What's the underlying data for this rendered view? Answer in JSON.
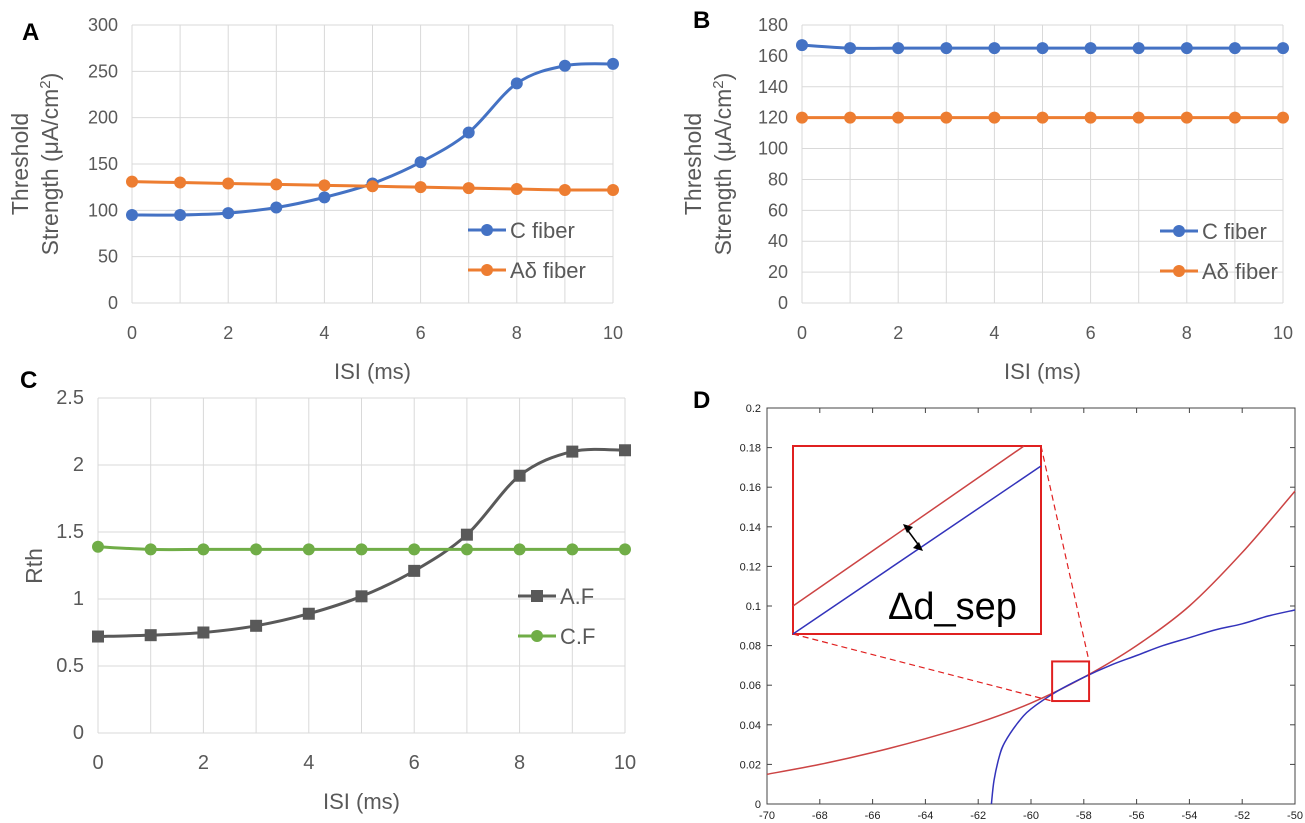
{
  "chart_data": [
    {
      "panel": "A",
      "type": "line",
      "xlabel": "ISI (ms)",
      "ylabel_line1": "Threshold",
      "ylabel_line2": "Strength (μA/cm",
      "ylabel_sup": "2",
      "ylabel_close": ")",
      "xlim": [
        0,
        10
      ],
      "ylim": [
        0,
        300
      ],
      "xticks": [
        0,
        2,
        4,
        6,
        8,
        10
      ],
      "yticks": [
        0,
        50,
        100,
        150,
        200,
        250,
        300
      ],
      "grid": true,
      "legend_position": "right",
      "x": [
        0,
        1,
        2,
        3,
        4,
        5,
        6,
        7,
        8,
        9,
        10
      ],
      "series": [
        {
          "name": "C fiber",
          "color": "#4472C4",
          "marker": "circle",
          "values": [
            95,
            95,
            97,
            103,
            114,
            129,
            152,
            184,
            237,
            256,
            258
          ]
        },
        {
          "name": "Aδ fiber",
          "color": "#ED7D31",
          "marker": "circle",
          "values": [
            131,
            130,
            129,
            128,
            127,
            126,
            125,
            124,
            123,
            122,
            122
          ]
        }
      ]
    },
    {
      "panel": "B",
      "type": "line",
      "xlabel": "ISI (ms)",
      "ylabel_line1": "Threshold",
      "ylabel_line2": "Strength (μA/cm",
      "ylabel_sup": "2",
      "ylabel_close": ")",
      "xlim": [
        0,
        10
      ],
      "ylim": [
        0,
        180
      ],
      "xticks": [
        0,
        2,
        4,
        6,
        8,
        10
      ],
      "yticks": [
        0,
        20,
        40,
        60,
        80,
        100,
        120,
        140,
        160,
        180
      ],
      "grid": true,
      "legend_position": "right",
      "x": [
        0,
        1,
        2,
        3,
        4,
        5,
        6,
        7,
        8,
        9,
        10
      ],
      "series": [
        {
          "name": "C fiber",
          "color": "#4472C4",
          "marker": "circle",
          "values": [
            167,
            165,
            165,
            165,
            165,
            165,
            165,
            165,
            165,
            165,
            165
          ]
        },
        {
          "name": "Aδ fiber",
          "color": "#ED7D31",
          "marker": "circle",
          "values": [
            120,
            120,
            120,
            120,
            120,
            120,
            120,
            120,
            120,
            120,
            120
          ]
        }
      ]
    },
    {
      "panel": "C",
      "type": "line",
      "xlabel": "ISI (ms)",
      "ylabel": "Rth",
      "xlim": [
        0,
        10
      ],
      "ylim": [
        0,
        2.5
      ],
      "xticks": [
        0,
        2,
        4,
        6,
        8,
        10
      ],
      "yticks": [
        "0",
        "0.5",
        "1",
        "1.5",
        "2",
        "2.5"
      ],
      "grid": true,
      "legend_position": "right",
      "x": [
        0,
        1,
        2,
        3,
        4,
        5,
        6,
        7,
        8,
        9,
        10
      ],
      "series": [
        {
          "name": "A.F",
          "color": "#595959",
          "marker": "square",
          "values": [
            0.72,
            0.73,
            0.75,
            0.8,
            0.89,
            1.02,
            1.21,
            1.48,
            1.92,
            2.1,
            2.11
          ]
        },
        {
          "name": "C.F",
          "color": "#70AD47",
          "marker": "circle",
          "values": [
            1.39,
            1.37,
            1.37,
            1.37,
            1.37,
            1.37,
            1.37,
            1.37,
            1.37,
            1.37,
            1.37
          ]
        }
      ]
    },
    {
      "panel": "D",
      "type": "line",
      "xlim": [
        -70,
        -50
      ],
      "ylim": [
        0,
        0.2
      ],
      "xticks": [
        -70,
        -68,
        -66,
        -64,
        -62,
        -60,
        -58,
        -56,
        -54,
        -52,
        -50
      ],
      "yticks": [
        "0",
        "0.02",
        "0.04",
        "0.06",
        "0.08",
        "0.1",
        "0.12",
        "0.14",
        "0.16",
        "0.18",
        "0.2"
      ],
      "grid": false,
      "inset_label": "Δd_sep",
      "zoom_box": {
        "x": [
          -59.2,
          -57.8
        ],
        "y": [
          0.052,
          0.072
        ]
      },
      "series": [
        {
          "color": "#CC4444",
          "x": [
            -70,
            -68,
            -66,
            -64,
            -62,
            -60,
            -58,
            -56,
            -54,
            -52,
            -50
          ],
          "values": [
            0.015,
            0.02,
            0.026,
            0.033,
            0.041,
            0.051,
            0.064,
            0.08,
            0.1,
            0.127,
            0.158
          ]
        },
        {
          "color": "#3333BB",
          "x": [
            -61.5,
            -61.4,
            -61.2,
            -61,
            -60.5,
            -60,
            -59,
            -58,
            -57,
            -56,
            -55,
            -54,
            -53,
            -52,
            -51,
            -50
          ],
          "values": [
            0,
            0.012,
            0.024,
            0.031,
            0.041,
            0.048,
            0.057,
            0.064,
            0.07,
            0.075,
            0.08,
            0.084,
            0.088,
            0.091,
            0.095,
            0.098
          ]
        }
      ]
    }
  ],
  "panel_labels": [
    "A",
    "B",
    "C",
    "D"
  ]
}
